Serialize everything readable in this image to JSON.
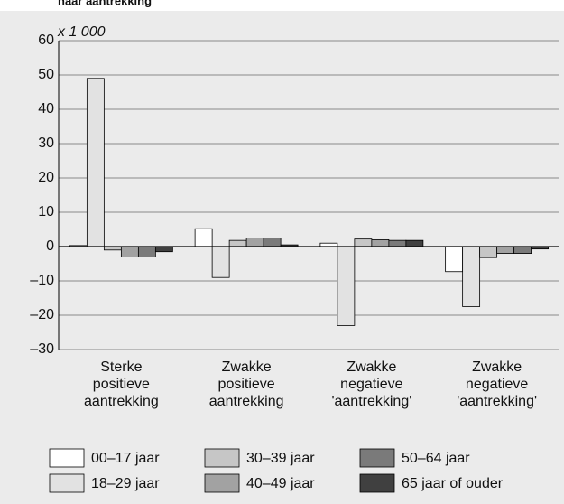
{
  "chart_data": {
    "type": "bar",
    "title": "naar aantrekking",
    "y_unit_label": "x 1 000",
    "categories": [
      [
        "Sterke",
        "positieve",
        "aantrekking"
      ],
      [
        "Zwakke",
        "positieve",
        "aantrekking"
      ],
      [
        "Zwakke",
        "negatieve",
        "'aantrekking'"
      ],
      [
        "Zwakke",
        "negatieve",
        "'aantrekking'"
      ]
    ],
    "series": [
      {
        "name": "00–17 jaar",
        "color": "#ffffff",
        "values": [
          0.3,
          5.2,
          1,
          -7.3
        ]
      },
      {
        "name": "18–29 jaar",
        "color": "#e2e2e2",
        "values": [
          49,
          -9,
          -23,
          -17.5
        ]
      },
      {
        "name": "30–39 jaar",
        "color": "#c6c6c6",
        "values": [
          -1,
          1.8,
          2.2,
          -3.2
        ]
      },
      {
        "name": "40–49 jaar",
        "color": "#a2a2a2",
        "values": [
          -3,
          2.5,
          2,
          -2
        ]
      },
      {
        "name": "50–64 jaar",
        "color": "#7a7a7a",
        "values": [
          -3,
          2.5,
          1.8,
          -2
        ]
      },
      {
        "name": "65 jaar of ouder",
        "color": "#404040",
        "values": [
          -1.5,
          0.5,
          1.8,
          -0.7
        ]
      }
    ],
    "ylim": [
      -30,
      60
    ],
    "yticks": [
      {
        "value": -30,
        "label": "–30"
      },
      {
        "value": -20,
        "label": "–20"
      },
      {
        "value": -10,
        "label": "–10"
      },
      0,
      10,
      20,
      30,
      40,
      50,
      60
    ],
    "grid": true
  }
}
